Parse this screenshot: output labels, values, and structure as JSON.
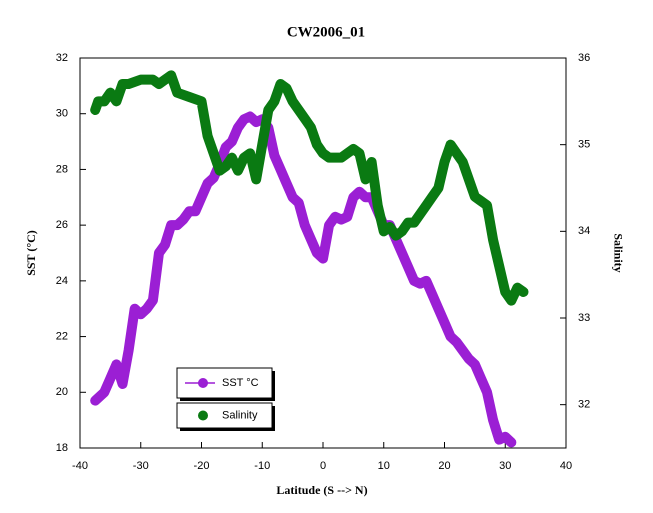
{
  "chart_data": {
    "type": "line",
    "title": "CW2006_01",
    "x_label": "Latitude (S --> N)",
    "y_label": "SST (°C)",
    "y2_label": "Salinity",
    "xlim": [
      -40,
      40
    ],
    "xticks": [
      -40,
      -30,
      -20,
      -10,
      0,
      10,
      20,
      30,
      40
    ],
    "ylim": [
      18,
      32
    ],
    "yticks": [
      18,
      20,
      22,
      24,
      26,
      28,
      30,
      32
    ],
    "y2lim": [
      31.5,
      36
    ],
    "y2ticks": [
      32,
      33,
      34,
      35,
      36
    ],
    "series": [
      {
        "name": "SST °C",
        "color": "#9b1fd4",
        "x": [
          -37.5,
          -36,
          -35,
          -34,
          -33,
          -32,
          -31,
          -30,
          -29,
          -28,
          -27,
          -26,
          -25,
          -24,
          -23,
          -22,
          -21,
          -20,
          -19,
          -18,
          -17,
          -16,
          -15,
          -14,
          -13,
          -12,
          -11,
          -10,
          -9,
          -8,
          -7,
          -6,
          -5,
          -4,
          -3,
          -2,
          -1,
          0,
          1,
          2,
          3,
          4,
          5,
          6,
          7,
          8,
          9,
          10,
          11,
          12,
          13,
          14,
          15,
          16,
          17,
          18,
          19,
          20,
          21,
          22,
          23,
          24,
          25,
          26,
          27,
          28,
          29,
          30,
          31
        ],
        "values": [
          19.7,
          20,
          20.5,
          21,
          20.3,
          21.5,
          23,
          22.8,
          23,
          23.3,
          25,
          25.3,
          26,
          26,
          26.2,
          26.5,
          26.5,
          27,
          27.5,
          27.7,
          28.2,
          28.8,
          29,
          29.5,
          29.8,
          29.9,
          29.7,
          29.8,
          29.5,
          28.5,
          28,
          27.5,
          27,
          26.8,
          26,
          25.5,
          25,
          24.8,
          26,
          26.3,
          26.2,
          26.3,
          27,
          27.2,
          27,
          27,
          26.5,
          26,
          26,
          25.5,
          25,
          24.5,
          24,
          23.9,
          24,
          23.5,
          23,
          22.5,
          22,
          21.8,
          21.5,
          21.2,
          21,
          20.5,
          20,
          19,
          18.3,
          18.4,
          18.2
        ]
      },
      {
        "name": "Salinity",
        "color": "#0a7a12",
        "axis": "y2",
        "x": [
          -37.5,
          -37,
          -36,
          -35,
          -34,
          -33,
          -32,
          -30,
          -28,
          -27,
          -25,
          -24,
          -22,
          -20,
          -19,
          -18,
          -17,
          -16,
          -15,
          -14,
          -13,
          -12,
          -11,
          -10,
          -9,
          -8,
          -7,
          -6,
          -5,
          -4,
          -3,
          -2,
          -1,
          0,
          1,
          2,
          3,
          4,
          5,
          6,
          7,
          8,
          9,
          10,
          11,
          12,
          13,
          14,
          15,
          16,
          17,
          18,
          19,
          20,
          21,
          22,
          23,
          24,
          25,
          26,
          27,
          28,
          29,
          30,
          31,
          32,
          33
        ],
        "values": [
          35.4,
          35.5,
          35.5,
          35.6,
          35.5,
          35.7,
          35.7,
          35.75,
          35.75,
          35.7,
          35.8,
          35.6,
          35.55,
          35.5,
          35.1,
          34.9,
          34.7,
          34.75,
          34.85,
          34.7,
          34.85,
          34.9,
          34.6,
          35,
          35.4,
          35.5,
          35.7,
          35.65,
          35.5,
          35.4,
          35.3,
          35.2,
          35,
          34.9,
          34.85,
          34.85,
          34.85,
          34.9,
          34.95,
          34.9,
          34.6,
          34.8,
          34.3,
          34,
          34.05,
          33.95,
          34,
          34.1,
          34.1,
          34.2,
          34.3,
          34.4,
          34.5,
          34.8,
          35,
          34.9,
          34.8,
          34.6,
          34.4,
          34.35,
          34.3,
          33.9,
          33.6,
          33.3,
          33.2,
          33.35,
          33.3
        ]
      }
    ]
  }
}
